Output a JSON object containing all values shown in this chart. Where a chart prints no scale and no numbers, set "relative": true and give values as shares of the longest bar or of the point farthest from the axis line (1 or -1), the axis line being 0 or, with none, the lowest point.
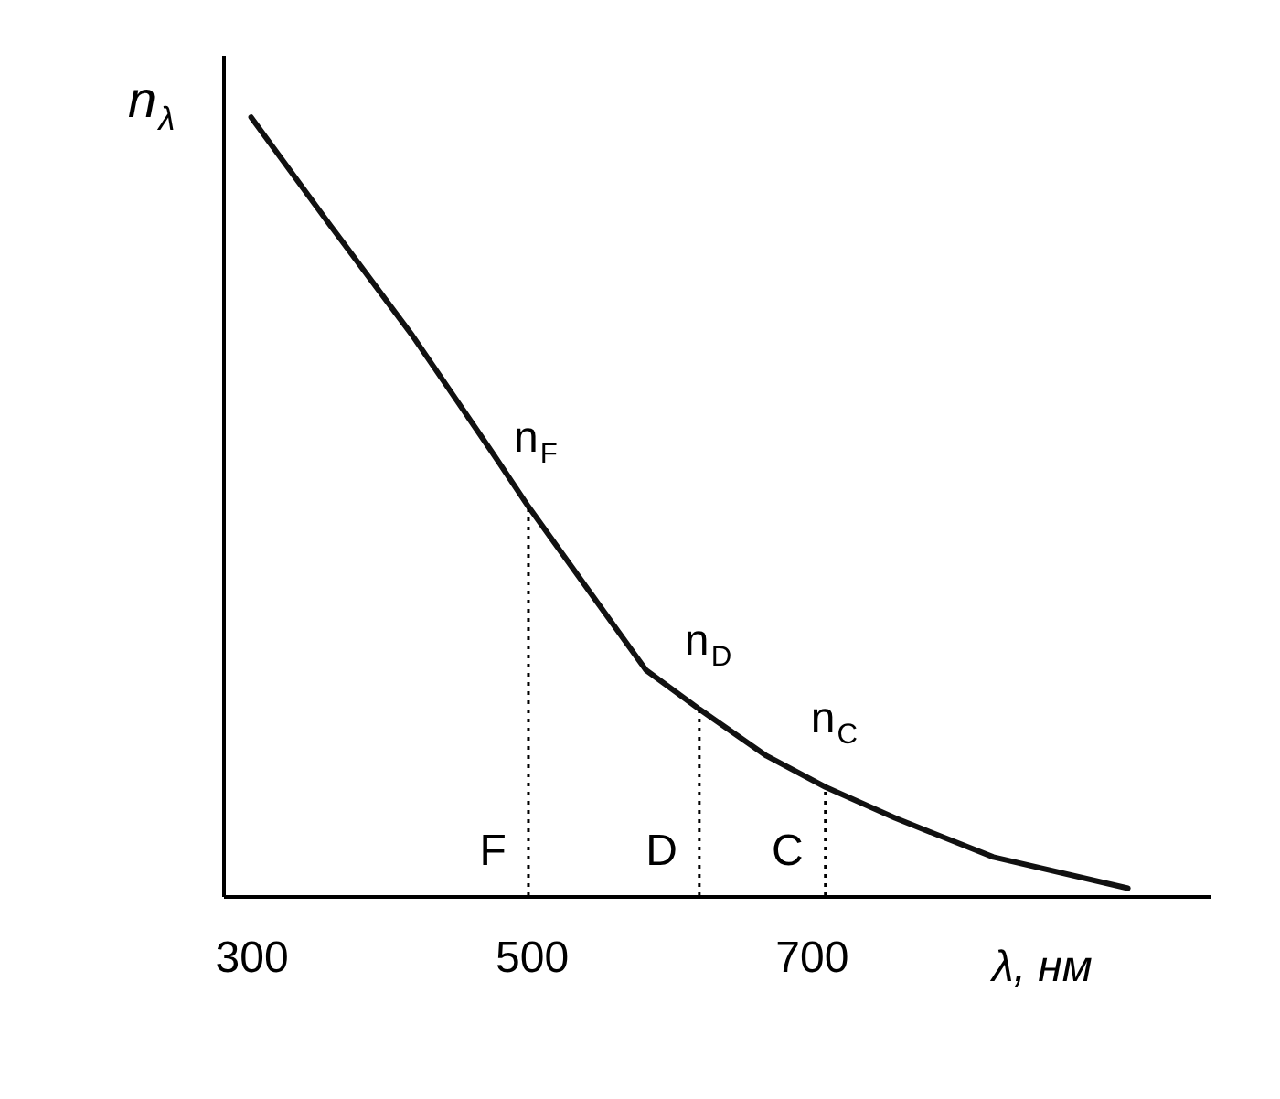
{
  "chart_data": {
    "type": "line",
    "relative": true,
    "xlabel": "λ, нм",
    "ylabel": "n$_{λ}$",
    "xlim": [
      280,
      985
    ],
    "xticks": [
      300,
      500,
      700
    ],
    "grid": false,
    "marker": "none",
    "line_style": "solid",
    "x": [
      300,
      357,
      415,
      472,
      498,
      530,
      582,
      620,
      668,
      710,
      760,
      830,
      926
    ],
    "series": [
      {
        "color": "#111111",
        "values": [
          1.0,
          0.86,
          0.72,
          0.57,
          0.5,
          0.42,
          0.29,
          0.24,
          0.18,
          0.14,
          0.1,
          0.05,
          0.01
        ]
      }
    ],
    "ref_lines": [
      {
        "axis": "x",
        "value": 498,
        "label": "F",
        "line_style": "dotted"
      },
      {
        "axis": "x",
        "value": 620,
        "label": "D",
        "line_style": "dotted"
      },
      {
        "axis": "x",
        "value": 710,
        "label": "C",
        "line_style": "dotted"
      }
    ],
    "annotations": [
      {
        "text": "n$_{F}$",
        "x": 498,
        "y": 0.5
      },
      {
        "text": "n$_{D}$",
        "x": 620,
        "y": 0.24
      },
      {
        "text": "n$_{C}$",
        "x": 710,
        "y": 0.14
      }
    ]
  }
}
